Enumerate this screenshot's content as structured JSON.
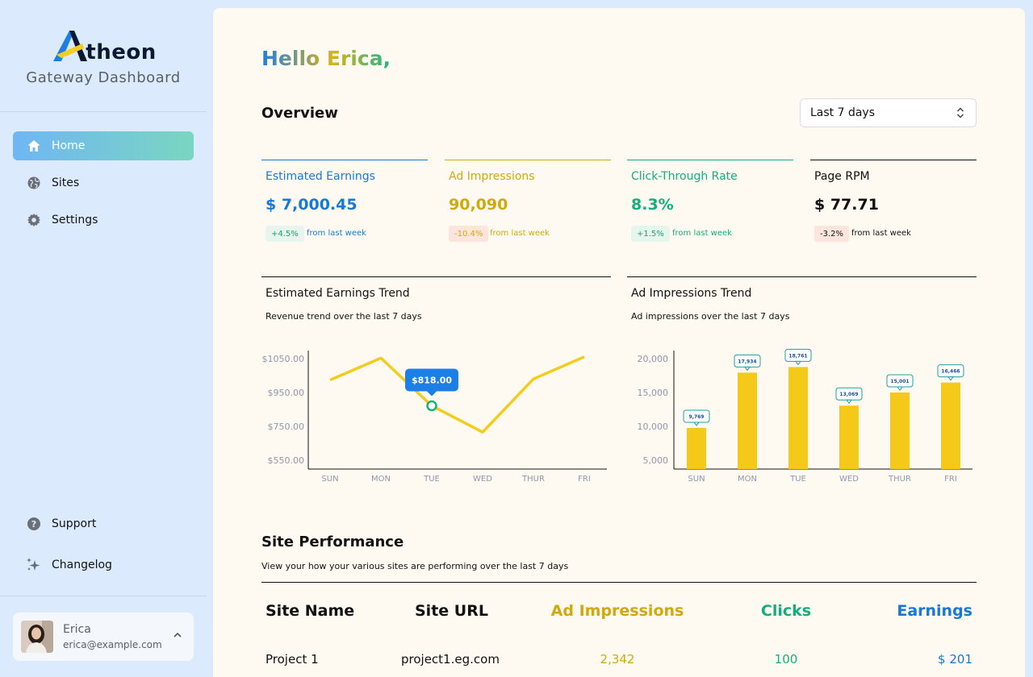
{
  "brand": {
    "name": "theon",
    "subtitle": "Gateway Dashboard"
  },
  "nav": {
    "items": [
      {
        "label": "Home",
        "icon": "home-icon",
        "active": true
      },
      {
        "label": "Sites",
        "icon": "globe-icon",
        "active": false
      },
      {
        "label": "Settings",
        "icon": "gear-icon",
        "active": false
      }
    ],
    "bottom": [
      {
        "label": "Support",
        "icon": "help-icon"
      },
      {
        "label": "Changelog",
        "icon": "sparkle-icon"
      }
    ]
  },
  "user": {
    "name": "Erica",
    "email": "erica@example.com"
  },
  "greeting": "Hello Erica,",
  "overview": {
    "title": "Overview",
    "range": "Last 7 days"
  },
  "kpis": [
    {
      "label": "Estimated Earnings",
      "value": "$ 7,000.45",
      "change": "+4.5%",
      "sub": "from last week",
      "color": "#1679d8",
      "badge_bg": "#e6f6ee",
      "badge_color": "#19a36a"
    },
    {
      "label": "Ad Impressions",
      "value": "90,090",
      "change": "-10.4%",
      "sub": "from last week",
      "color": "#d0a90d",
      "badge_bg": "#fde4dc",
      "badge_color": "#d0a90d"
    },
    {
      "label": "Click-Through Rate",
      "value": "8.3%",
      "change": "+1.5%",
      "sub": "from last week",
      "color": "#14ad7e",
      "badge_bg": "#e6f6ee",
      "badge_color": "#19a36a"
    },
    {
      "label": "Page RPM",
      "value": "$ 77.71",
      "change": "-3.2%",
      "sub": "from last week",
      "color": "#111111",
      "badge_bg": "#fde4dc",
      "badge_color": "#111111"
    }
  ],
  "chart_data": [
    {
      "type": "line",
      "title": "Estimated Earnings Trend",
      "subtitle": "Revenue trend over the last 7 days",
      "categories": [
        "SUN",
        "MON",
        "TUE",
        "WED",
        "THUR",
        "FRI"
      ],
      "values": [
        945,
        1053,
        818,
        688,
        950,
        1059
      ],
      "yticks": [
        "$1050.00",
        "$950.00",
        "$750.00",
        "$550.00"
      ],
      "tooltip": {
        "index": 2,
        "label": "$818.00"
      },
      "color": "#f2cc1f"
    },
    {
      "type": "bar",
      "title": "Ad Impressions Trend",
      "subtitle": "Ad impressions over the last 7 days",
      "categories": [
        "SUN",
        "MON",
        "TUE",
        "WED",
        "THUR",
        "FRI"
      ],
      "values": [
        9769,
        17934,
        18761,
        13069,
        15001,
        16466
      ],
      "labels": [
        "9,769",
        "17,934",
        "18,761",
        "13,069",
        "15,001",
        "16,466"
      ],
      "yticks": [
        "20,000",
        "15,000",
        "10,000",
        "5,000"
      ],
      "ylim": [
        1666,
        20000
      ],
      "color": "#f5c91a"
    }
  ],
  "performance": {
    "title": "Site Performance",
    "subtitle": "View your how your various sites are performing over the last 7 days",
    "columns": [
      "Site Name",
      "Site URL",
      "Ad Impressions",
      "Clicks",
      "Earnings"
    ],
    "column_colors": [
      "#111111",
      "#111111",
      "#d0a90d",
      "#14ad7e",
      "#1679d8"
    ],
    "rows": [
      [
        "Project 1",
        "project1.eg.com",
        "2,342",
        "100",
        "$ 201"
      ]
    ]
  }
}
